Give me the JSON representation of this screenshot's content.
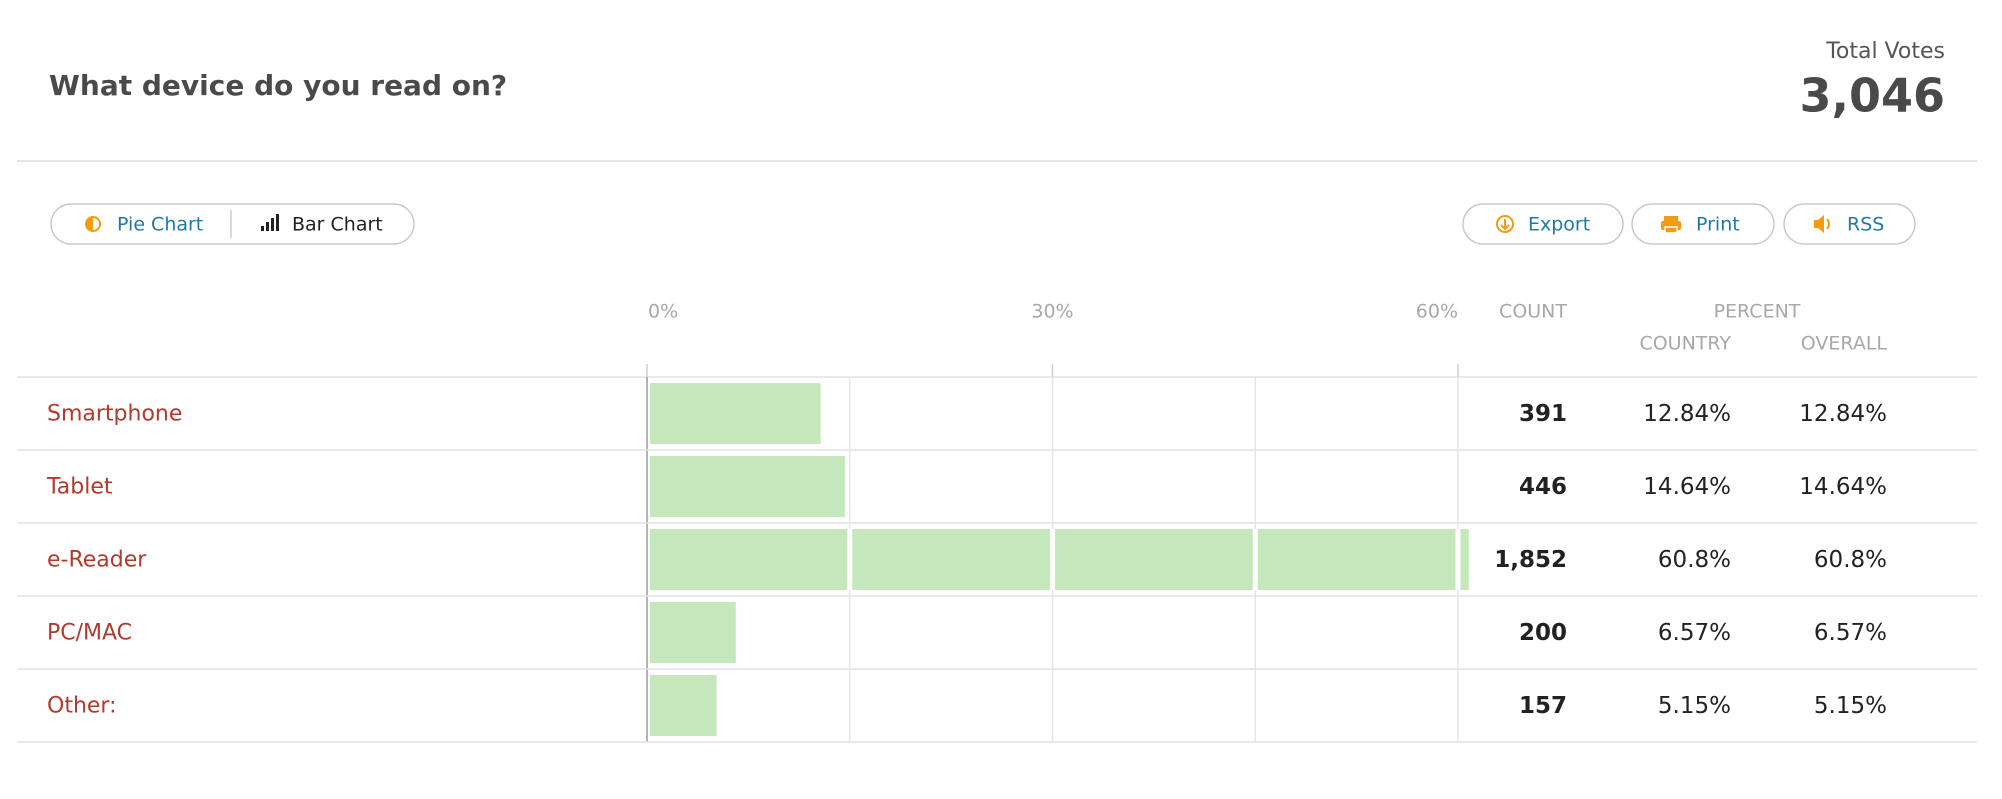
{
  "header": {
    "title": "What device do you read on?",
    "total_label": "Total Votes",
    "total_value": "3,046"
  },
  "toolbar": {
    "views": [
      "Pie Chart",
      "Bar Chart"
    ],
    "actions": [
      "Export",
      "Print",
      "RSS"
    ]
  },
  "table": {
    "columns": {
      "count": "COUNT",
      "percent": "PERCENT",
      "country": "COUNTRY",
      "overall": "OVERALL"
    },
    "rows": [
      {
        "count": "391",
        "country": "12.84%"
      },
      {
        "count": "446",
        "country": "14.64%"
      },
      {
        "count": "1,852",
        "country": "60.8%"
      },
      {
        "count": "200",
        "country": "6.57%"
      },
      {
        "count": "157",
        "country": "5.15%"
      }
    ]
  },
  "chart_data": {
    "type": "bar",
    "orientation": "horizontal",
    "categories": [
      "Smartphone",
      "Tablet",
      "e-Reader",
      "PC/MAC",
      "Other:"
    ],
    "values": [
      12.84,
      14.64,
      60.8,
      6.57,
      5.15
    ],
    "value_labels": [
      "12.84%",
      "14.64%",
      "60.8%",
      "6.57%",
      "5.15%"
    ],
    "xlim": [
      0,
      60
    ],
    "xticks": [
      {
        "value": 0,
        "label": "0%"
      },
      {
        "value": 30,
        "label": "30%"
      },
      {
        "value": 60,
        "label": "60%"
      }
    ],
    "xminor": [
      15,
      45
    ],
    "color": "#c4e8bb",
    "grid": true
  }
}
